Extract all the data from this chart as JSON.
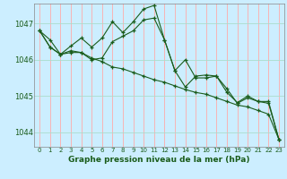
{
  "title": "Graphe pression niveau de la mer (hPa)",
  "bg_color": "#cceeff",
  "grid_color_x": "#ffaaaa",
  "grid_color_y": "#aaddcc",
  "line_color": "#1a5c1a",
  "marker_color": "#1a5c1a",
  "xlim": [
    -0.5,
    23.5
  ],
  "ylim": [
    1043.6,
    1047.55
  ],
  "yticks": [
    1044,
    1045,
    1046,
    1047
  ],
  "xticks": [
    0,
    1,
    2,
    3,
    4,
    5,
    6,
    7,
    8,
    9,
    10,
    11,
    12,
    13,
    14,
    15,
    16,
    17,
    18,
    19,
    20,
    21,
    22,
    23
  ],
  "series": [
    [
      1046.8,
      1046.55,
      1046.15,
      1046.25,
      1046.2,
      1046.0,
      1046.05,
      1046.5,
      1046.65,
      1046.8,
      1047.1,
      1047.15,
      1046.55,
      1045.7,
      1046.0,
      1045.5,
      1045.5,
      1045.55,
      1045.2,
      1044.8,
      1044.95,
      1044.85,
      1044.8,
      1043.8
    ],
    [
      1046.8,
      1046.35,
      1046.15,
      1046.2,
      1046.2,
      1046.05,
      1045.95,
      1045.8,
      1045.75,
      1045.65,
      1045.55,
      1045.45,
      1045.38,
      1045.28,
      1045.18,
      1045.1,
      1045.05,
      1044.95,
      1044.85,
      1044.75,
      1044.7,
      1044.6,
      1044.5,
      1043.8
    ],
    [
      1046.8,
      1046.35,
      1046.15,
      1046.38,
      1046.6,
      1046.35,
      1046.6,
      1047.05,
      1046.75,
      1047.05,
      1047.4,
      1047.5,
      1046.55,
      1045.7,
      1045.25,
      1045.55,
      1045.58,
      1045.55,
      1045.1,
      1044.82,
      1045.0,
      1044.85,
      1044.85,
      1043.8
    ]
  ]
}
